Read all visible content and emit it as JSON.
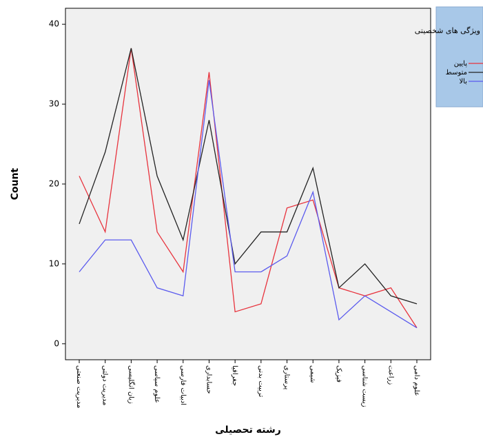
{
  "chart_data": {
    "type": "line",
    "x_label": "رشته تحصیلی",
    "y_label": "Count",
    "categories": [
      "مدیریت صنعتی",
      "مدیریت دولتی",
      "زبان انگلیسی",
      "علوم سیاسی",
      "ادبیات فارسی",
      "حسابداری",
      "جغرافیا",
      "تربیت بدنی",
      "پرستاری",
      "شیمی",
      "فیزیک",
      "زیست شناسی",
      "زراعت",
      "علوم دامی"
    ],
    "legend_title": "ویژگی های شخصیتی",
    "series": [
      {
        "name": "پایین",
        "color": "#e8323c",
        "values": [
          21,
          14,
          37,
          14,
          9,
          34,
          4,
          5,
          17,
          18,
          7,
          6,
          7,
          2
        ]
      },
      {
        "name": "متوسط",
        "color": "#222222",
        "values": [
          15,
          24,
          37,
          21,
          13,
          28,
          10,
          14,
          14,
          22,
          7,
          10,
          6,
          5
        ]
      },
      {
        "name": "بالا",
        "color": "#5a5aee",
        "values": [
          9,
          13,
          13,
          7,
          6,
          33,
          9,
          9,
          11,
          19,
          3,
          6,
          4,
          2
        ]
      }
    ],
    "ylim": [
      -2,
      42
    ],
    "yticks": [
      0,
      10,
      20,
      30,
      40
    ],
    "legend_position": "right"
  }
}
